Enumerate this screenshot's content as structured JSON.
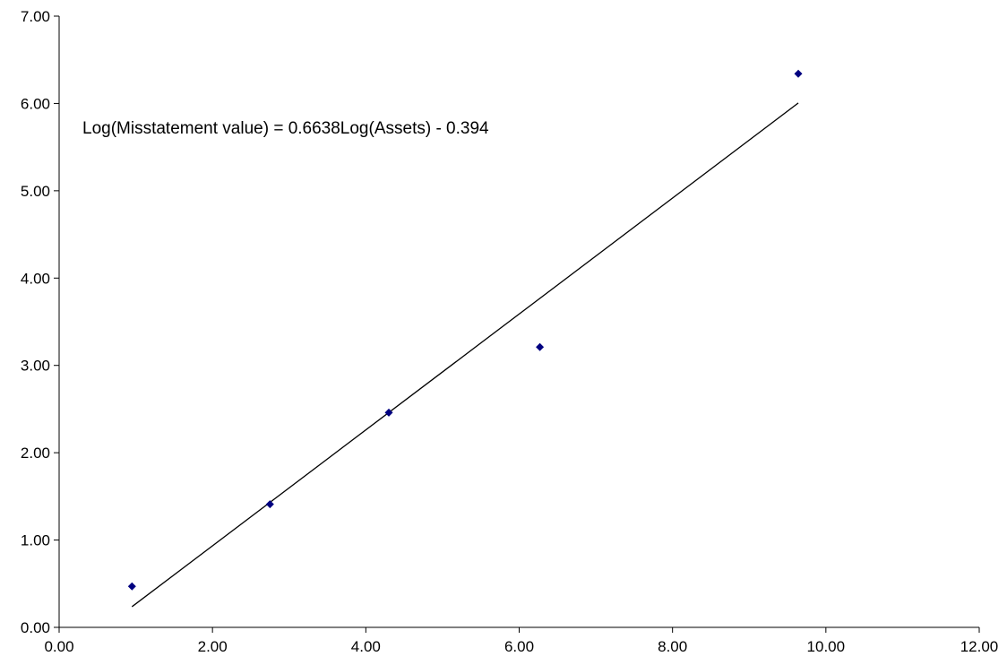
{
  "chart_data": {
    "type": "scatter",
    "title": "",
    "xlabel": "",
    "ylabel": "",
    "xlim": [
      0,
      12
    ],
    "ylim": [
      0,
      7
    ],
    "x_ticks": [
      "0.00",
      "2.00",
      "4.00",
      "6.00",
      "8.00",
      "10.00",
      "12.00"
    ],
    "y_ticks": [
      "0.00",
      "1.00",
      "2.00",
      "3.00",
      "4.00",
      "5.00",
      "6.00",
      "7.00"
    ],
    "grid": false,
    "legend": "none",
    "series": [
      {
        "x": [
          0.95,
          2.75,
          4.3,
          6.27,
          9.64
        ],
        "y": [
          0.47,
          1.41,
          2.46,
          3.21,
          6.34
        ],
        "marker": "diamond",
        "color": "#000080"
      }
    ],
    "trendline": {
      "slope": 0.6638,
      "intercept": -0.394,
      "x_range": [
        0.95,
        9.64
      ],
      "color": "#000000"
    },
    "annotation": "Log(Misstatement value) = 0.6638Log(Assets) - 0.394"
  }
}
